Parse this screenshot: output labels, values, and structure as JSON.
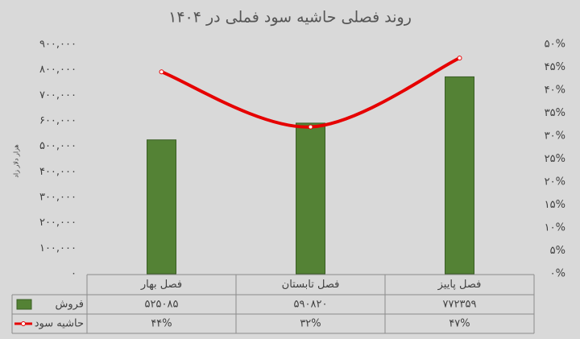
{
  "chart_data": {
    "type": "bar",
    "title": "روند فصلی حاشیه سود فملی در ۱۴۰۴",
    "y_label": "هزار دلار زاد",
    "categories": [
      "فصل بهار",
      "فصل تابستان",
      "فصل پاییز"
    ],
    "series": [
      {
        "name": "فروش",
        "type": "bar",
        "color": "#548235",
        "values": [
          525085,
          590820,
          772359
        ],
        "value_labels": [
          "۵۲۵۰۸۵",
          "۵۹۰۸۲۰",
          "۷۷۲۳۵۹"
        ]
      },
      {
        "name": "حاشیه سود",
        "type": "line",
        "axis": "y2",
        "color": "#e60000",
        "values": [
          44,
          32,
          47
        ],
        "value_labels": [
          "۴۴%",
          "۳۲%",
          "۴۷%"
        ]
      }
    ],
    "ylim": [
      0,
      900000
    ],
    "yticks": [
      {
        "value": 0,
        "label": "۰"
      },
      {
        "value": 100000,
        "label": "۱۰۰,۰۰۰"
      },
      {
        "value": 200000,
        "label": "۲۰۰,۰۰۰"
      },
      {
        "value": 300000,
        "label": "۳۰۰,۰۰۰"
      },
      {
        "value": 400000,
        "label": "۴۰۰,۰۰۰"
      },
      {
        "value": 500000,
        "label": "۵۰۰,۰۰۰"
      },
      {
        "value": 600000,
        "label": "۶۰۰,۰۰۰"
      },
      {
        "value": 700000,
        "label": "۷۰۰,۰۰۰"
      },
      {
        "value": 800000,
        "label": "۸۰۰,۰۰۰"
      },
      {
        "value": 900000,
        "label": "۹۰۰,۰۰۰"
      }
    ],
    "y2lim": [
      0,
      50
    ],
    "y2ticks": [
      {
        "value": 0,
        "label": "۰%"
      },
      {
        "value": 5,
        "label": "۵%"
      },
      {
        "value": 10,
        "label": "۱۰%"
      },
      {
        "value": 15,
        "label": "۱۵%"
      },
      {
        "value": 20,
        "label": "۲۰%"
      },
      {
        "value": 25,
        "label": "۲۵%"
      },
      {
        "value": 30,
        "label": "۳۰%"
      },
      {
        "value": 35,
        "label": "۳۵%"
      },
      {
        "value": 40,
        "label": "۴۰%"
      },
      {
        "value": 45,
        "label": "۴۵%"
      },
      {
        "value": 50,
        "label": "۵۰%"
      }
    ]
  }
}
